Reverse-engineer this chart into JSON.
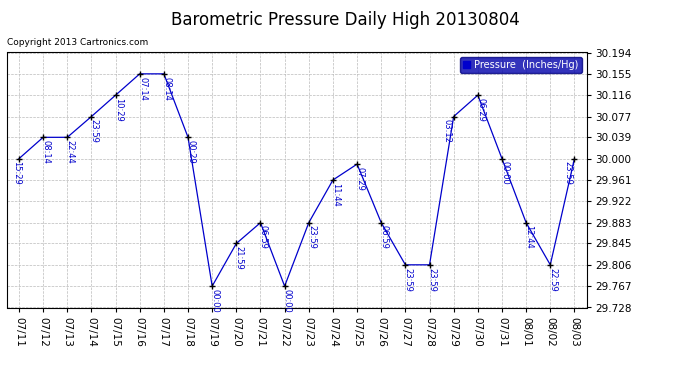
{
  "title": "Barometric Pressure Daily High 20130804",
  "copyright": "Copyright 2013 Cartronics.com",
  "legend_label": "Pressure  (Inches/Hg)",
  "x_labels": [
    "07/11",
    "07/12",
    "07/13",
    "07/14",
    "07/15",
    "07/16",
    "07/17",
    "07/18",
    "07/19",
    "07/20",
    "07/21",
    "07/22",
    "07/23",
    "07/24",
    "07/25",
    "07/26",
    "07/27",
    "07/28",
    "07/29",
    "07/30",
    "07/31",
    "08/01",
    "08/02",
    "08/03"
  ],
  "y_values": [
    30.0,
    30.039,
    30.039,
    30.077,
    30.116,
    30.155,
    30.155,
    30.039,
    29.767,
    29.845,
    29.883,
    29.767,
    29.883,
    29.961,
    29.99,
    29.883,
    29.806,
    29.806,
    30.077,
    30.116,
    30.0,
    29.883,
    29.806,
    30.0
  ],
  "point_labels": [
    "15:29",
    "08:14",
    "22:44",
    "23:59",
    "10:29",
    "07:14",
    "08:14",
    "00:29",
    "00:00",
    "21:59",
    "06:59",
    "00:00",
    "23:59",
    "11:44",
    "07:29",
    "06:59",
    "23:59",
    "23:59",
    "03:12",
    "06:29",
    "00:00",
    "12:44",
    "22:59",
    "23:59"
  ],
  "y_ticks": [
    29.728,
    29.767,
    29.806,
    29.845,
    29.883,
    29.922,
    29.961,
    30.0,
    30.039,
    30.077,
    30.116,
    30.155,
    30.194
  ],
  "ylim": [
    29.728,
    30.194
  ],
  "line_color": "#0000cc",
  "marker_color": "#000000",
  "bg_color": "#ffffff",
  "grid_color": "#bbbbbb",
  "title_fontsize": 12,
  "copyright_fontsize": 6.5,
  "label_fontsize": 6,
  "tick_fontsize": 7.5
}
